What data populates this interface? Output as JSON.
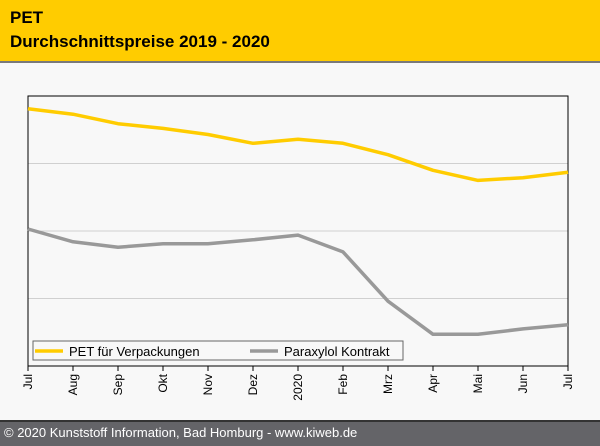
{
  "header": {
    "title": "PET",
    "subtitle": "Durchschnittspreise 2019 - 2020"
  },
  "footer": {
    "text": "© 2020 Kunststoff Information, Bad Homburg - www.kiweb.de"
  },
  "colors": {
    "header_bg": "#ffcc00",
    "pet": "#ffcc00",
    "paraxylol": "#999999",
    "footer_bg": "#646468"
  },
  "chart_data": {
    "type": "line",
    "title": "PET Durchschnittspreise 2019 - 2020",
    "xlabel": "",
    "ylabel": "",
    "categories": [
      "Jul",
      "Aug",
      "Sep",
      "Okt",
      "Nov",
      "Dez",
      "2020",
      "Feb",
      "Mrz",
      "Apr",
      "Mai",
      "Jun",
      "Jul"
    ],
    "ylim": [
      0,
      4
    ],
    "y_ticks_labeled": false,
    "grid": true,
    "legend_position": "bottom-left",
    "series": [
      {
        "name": "PET für Verpackungen",
        "color": "#ffcc00",
        "values": [
          3.81,
          3.73,
          3.59,
          3.52,
          3.43,
          3.3,
          3.36,
          3.3,
          3.13,
          2.9,
          2.75,
          2.79,
          2.87
        ]
      },
      {
        "name": "Paraxylol Kontrakt",
        "color": "#999999",
        "values": [
          2.03,
          1.84,
          1.76,
          1.81,
          1.81,
          1.87,
          1.94,
          1.69,
          0.96,
          0.47,
          0.47,
          0.55,
          0.61
        ]
      }
    ]
  }
}
